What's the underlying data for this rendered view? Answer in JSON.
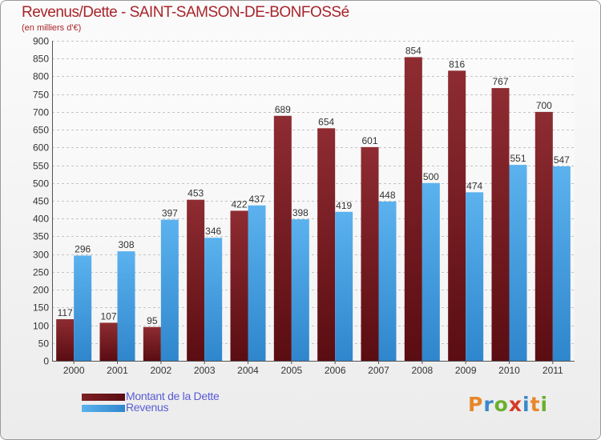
{
  "chart_data": {
    "type": "bar",
    "title": "Revenus/Dette - SAINT-SAMSON-DE-BONFOSSé",
    "subtitle": "(en milliers d'€)",
    "categories": [
      "2000",
      "2001",
      "2002",
      "2003",
      "2004",
      "2005",
      "2006",
      "2007",
      "2008",
      "2009",
      "2010",
      "2011"
    ],
    "series": [
      {
        "name": "Montant de la Dette",
        "color": "#7e1f24",
        "values": [
          117,
          107,
          95,
          453,
          422,
          689,
          654,
          601,
          854,
          816,
          767,
          700
        ]
      },
      {
        "name": "Revenus",
        "color": "#4aa0e2",
        "values": [
          296,
          308,
          397,
          346,
          437,
          398,
          419,
          448,
          500,
          474,
          551,
          547
        ]
      }
    ],
    "ylim": [
      0,
      900
    ],
    "yticks": [
      0,
      50,
      100,
      150,
      200,
      250,
      300,
      350,
      400,
      450,
      500,
      550,
      600,
      650,
      700,
      750,
      800,
      850,
      900
    ],
    "xlabel": "",
    "ylabel": "",
    "grid": true,
    "legend_position": "bottom-left"
  },
  "logo": {
    "text": "Proxiti",
    "letters": [
      "P",
      "r",
      "o",
      "x",
      "i",
      "t",
      "i"
    ]
  }
}
